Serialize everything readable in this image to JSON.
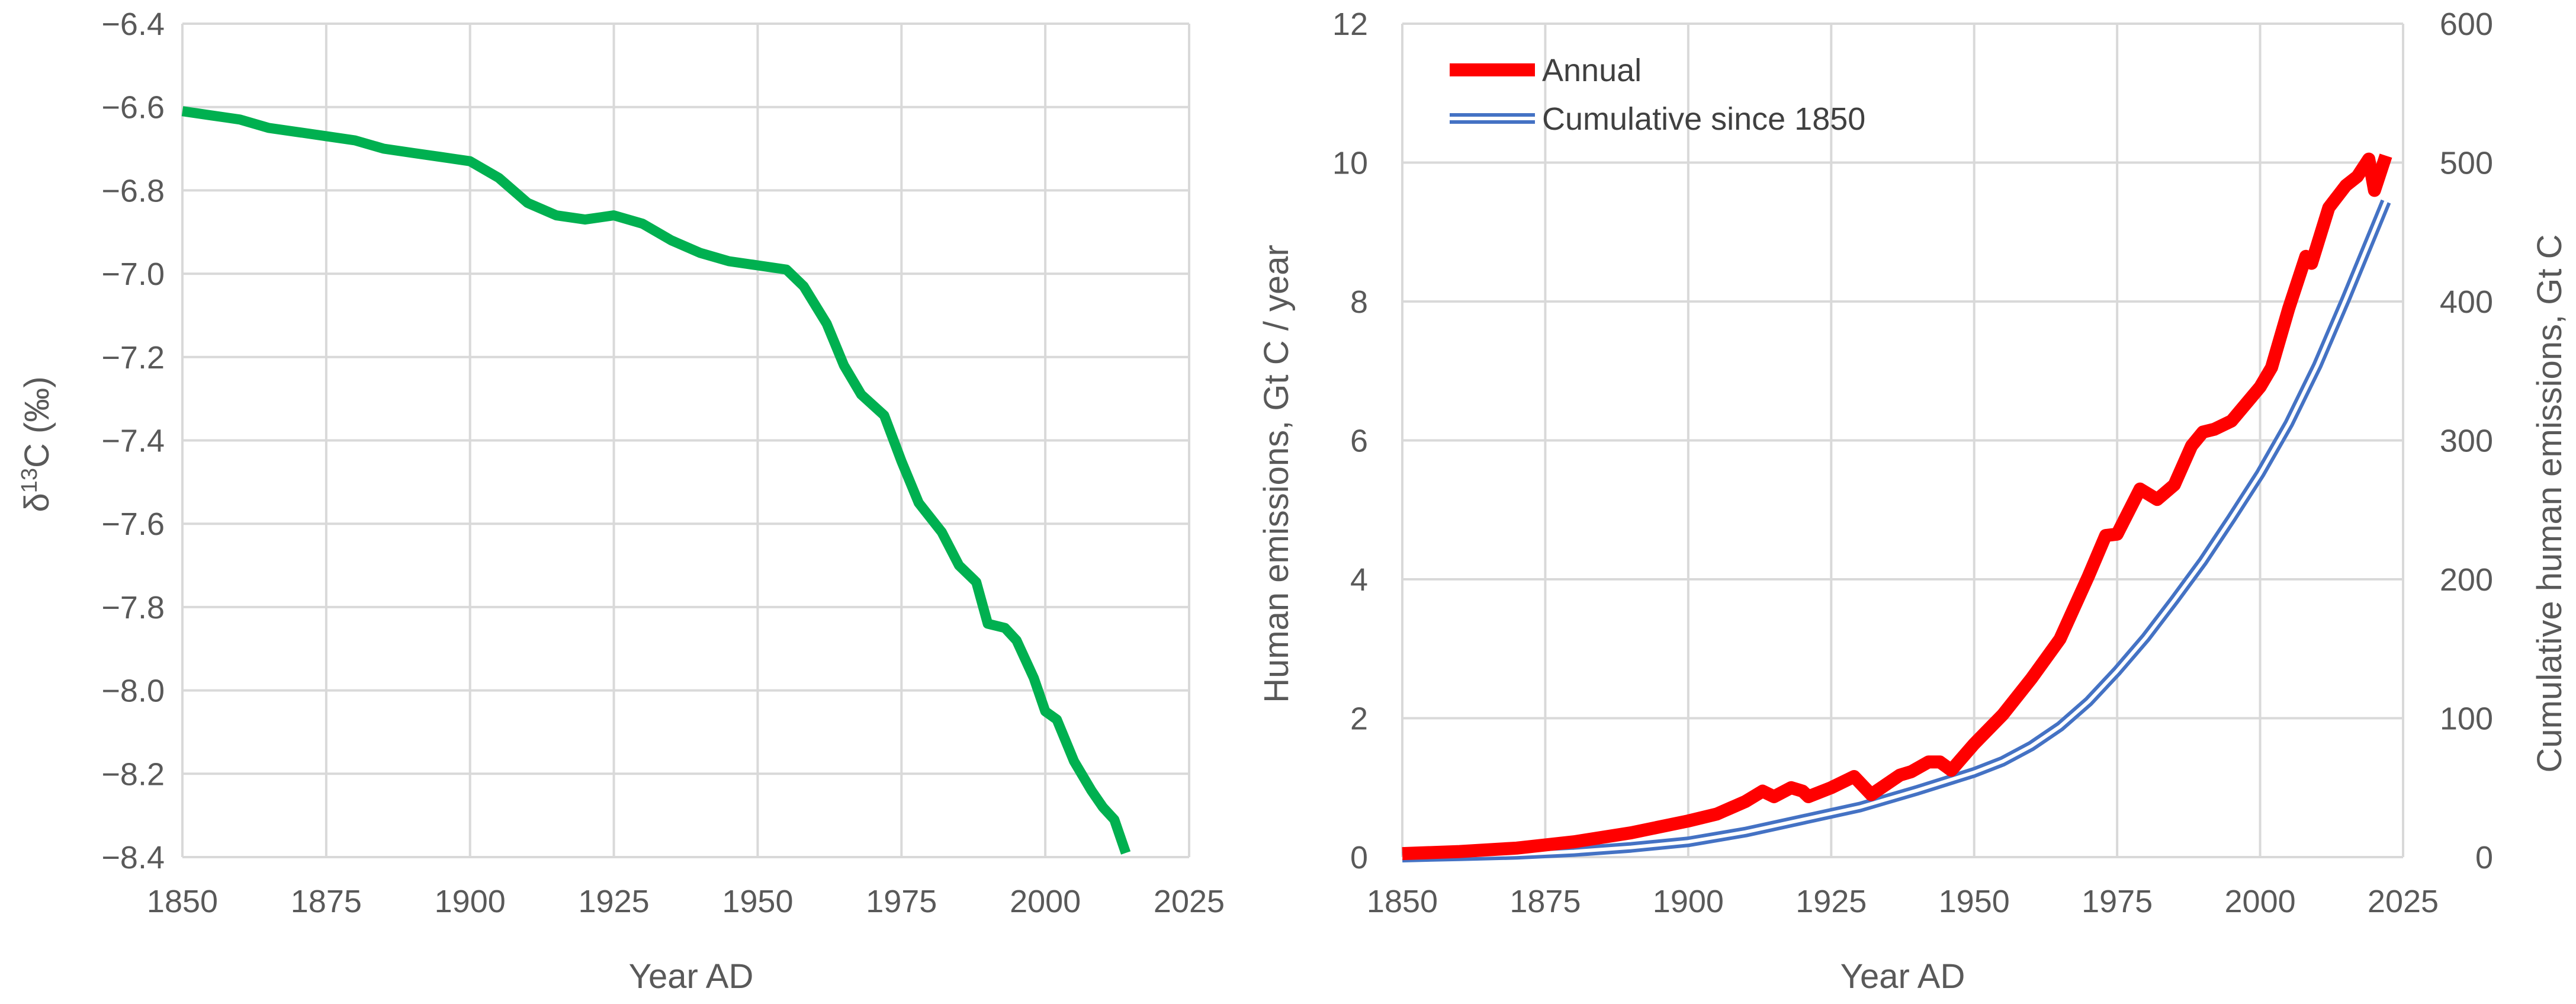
{
  "chart_data": [
    {
      "type": "line",
      "title": "",
      "xlabel": "Year AD",
      "ylabel": "δ13C (‰)",
      "ylabel_parts": {
        "base": "δ",
        "sup": "13",
        "rest": "C (‰)"
      },
      "xlim": [
        1850,
        2025
      ],
      "ylim": [
        -8.4,
        -6.4
      ],
      "xticks": [
        1850,
        1875,
        1900,
        1925,
        1950,
        1975,
        2000,
        2025
      ],
      "yticks": [
        -6.4,
        -6.6,
        -6.8,
        -7.0,
        -7.2,
        -7.4,
        -7.6,
        -7.8,
        -8.0,
        -8.2,
        -8.4
      ],
      "ytick_labels": [
        "−6.4",
        "−6.6",
        "−6.8",
        "−7.0",
        "−7.2",
        "−7.4",
        "−7.6",
        "−7.8",
        "−8.0",
        "−8.2",
        "−8.4"
      ],
      "grid": true,
      "series": [
        {
          "name": "δ13C",
          "color": "#00b050",
          "x": [
            1850,
            1855,
            1860,
            1865,
            1870,
            1875,
            1880,
            1885,
            1890,
            1895,
            1900,
            1905,
            1910,
            1915,
            1920,
            1925,
            1930,
            1935,
            1940,
            1945,
            1950,
            1955,
            1958,
            1962,
            1965,
            1968,
            1972,
            1975,
            1978,
            1982,
            1985,
            1988,
            1990,
            1993,
            1995,
            1998,
            2000,
            2002,
            2005,
            2008,
            2010,
            2012,
            2014
          ],
          "y": [
            -6.61,
            -6.62,
            -6.63,
            -6.65,
            -6.66,
            -6.67,
            -6.68,
            -6.7,
            -6.71,
            -6.72,
            -6.73,
            -6.77,
            -6.83,
            -6.86,
            -6.87,
            -6.86,
            -6.88,
            -6.92,
            -6.95,
            -6.97,
            -6.98,
            -6.99,
            -7.03,
            -7.12,
            -7.22,
            -7.29,
            -7.34,
            -7.45,
            -7.55,
            -7.62,
            -7.7,
            -7.74,
            -7.84,
            -7.85,
            -7.88,
            -7.97,
            -8.05,
            -8.07,
            -8.17,
            -8.24,
            -8.28,
            -8.31,
            -8.39
          ]
        }
      ]
    },
    {
      "type": "line",
      "title": "",
      "xlabel": "Year AD",
      "ylabel": "Human emissions, Gt C / year",
      "y2label": "Cumulative human emissions, Gt C",
      "xlim": [
        1850,
        2025
      ],
      "ylim": [
        0,
        12
      ],
      "y2lim": [
        0,
        600
      ],
      "xticks": [
        1850,
        1875,
        1900,
        1925,
        1950,
        1975,
        2000,
        2025
      ],
      "yticks": [
        0,
        2,
        4,
        6,
        8,
        10,
        12
      ],
      "y2ticks": [
        0,
        100,
        200,
        300,
        400,
        500,
        600
      ],
      "grid": true,
      "legend": "top-left",
      "series": [
        {
          "name": "Annual",
          "color": "#ff0000",
          "axis": "left",
          "style": "thick",
          "x": [
            1850,
            1860,
            1870,
            1880,
            1890,
            1900,
            1905,
            1910,
            1913,
            1915,
            1918,
            1920,
            1921,
            1925,
            1929,
            1932,
            1937,
            1939,
            1942,
            1944,
            1946,
            1950,
            1955,
            1960,
            1965,
            1970,
            1973,
            1975,
            1979,
            1982,
            1985,
            1988,
            1990,
            1992,
            1995,
            2000,
            2002,
            2005,
            2008,
            2009,
            2012,
            2015,
            2017,
            2019,
            2020,
            2022
          ],
          "y": [
            0.05,
            0.08,
            0.13,
            0.22,
            0.35,
            0.52,
            0.62,
            0.8,
            0.95,
            0.87,
            1.0,
            0.95,
            0.87,
            1.0,
            1.16,
            0.9,
            1.18,
            1.23,
            1.37,
            1.37,
            1.25,
            1.63,
            2.05,
            2.57,
            3.14,
            4.05,
            4.63,
            4.65,
            5.3,
            5.15,
            5.36,
            5.92,
            6.12,
            6.16,
            6.28,
            6.77,
            7.05,
            7.9,
            8.65,
            8.55,
            9.35,
            9.67,
            9.8,
            10.05,
            9.6,
            10.1
          ]
        },
        {
          "name": "Cumulative since 1850",
          "color": "#4472c4",
          "axis": "right",
          "style": "double",
          "x": [
            1850,
            1860,
            1870,
            1880,
            1890,
            1900,
            1910,
            1920,
            1930,
            1940,
            1950,
            1955,
            1960,
            1965,
            1970,
            1975,
            1980,
            1985,
            1990,
            1995,
            2000,
            2005,
            2010,
            2015,
            2020,
            2022
          ],
          "y": [
            0,
            1,
            2,
            4,
            7,
            11,
            18,
            27,
            36,
            48,
            61,
            69,
            80,
            94,
            112,
            134,
            158,
            185,
            213,
            244,
            276,
            312,
            354,
            402,
            452,
            472
          ]
        }
      ]
    }
  ]
}
